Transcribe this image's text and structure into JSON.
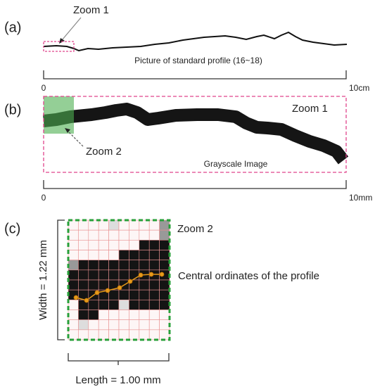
{
  "panel_a": {
    "label": "(a)",
    "zoom_label": "Zoom 1",
    "caption": "Picture of standard profile (16~18)",
    "scale_start": "0",
    "scale_end": "10cm"
  },
  "panel_b": {
    "label": "(b)",
    "zoom1_label": "Zoom 1",
    "zoom2_label": "Zoom 2",
    "caption": "Grayscale Image",
    "scale_start": "0",
    "scale_end": "10mm"
  },
  "panel_c": {
    "label": "(c)",
    "zoom_label": "Zoom 2",
    "width_label": "Width = 1.22 mm",
    "caption": "Central ordinates of the profile",
    "length_label": "Length = 1.00 mm"
  }
}
